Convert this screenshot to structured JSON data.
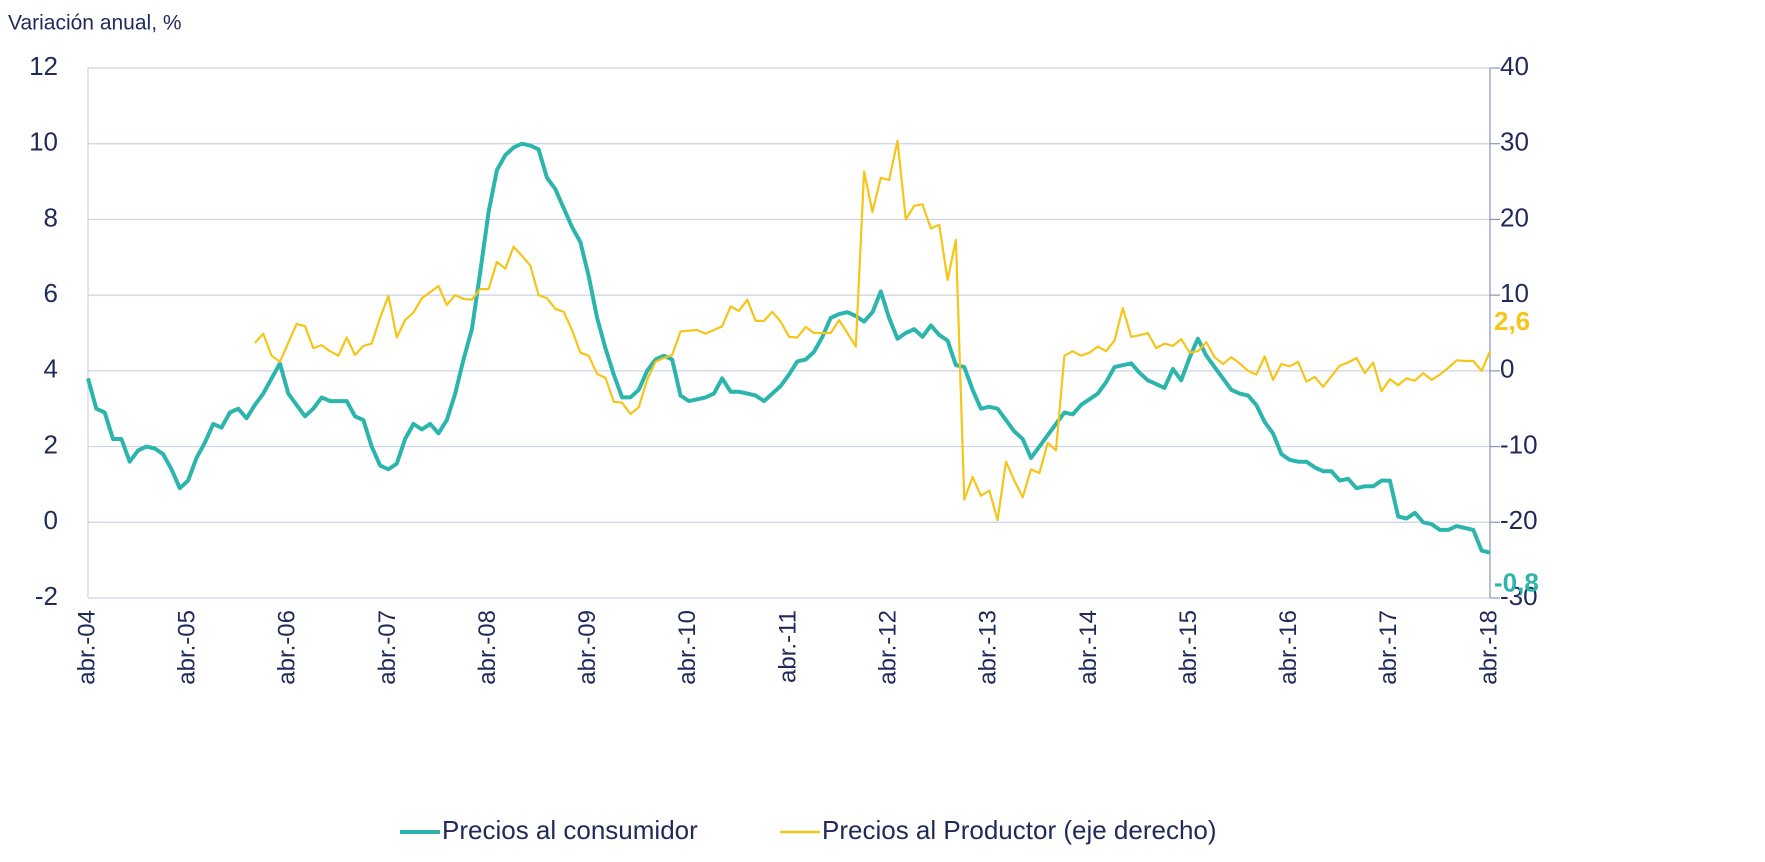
{
  "chart_data": {
    "type": "line",
    "axis_label": "Variación anual, %",
    "categories": [
      "abr.-04",
      null,
      null,
      null,
      null,
      null,
      null,
      null,
      null,
      null,
      null,
      null,
      "abr.-05",
      null,
      null,
      null,
      null,
      null,
      null,
      null,
      null,
      null,
      null,
      null,
      "abr.-06",
      null,
      null,
      null,
      null,
      null,
      null,
      null,
      null,
      null,
      null,
      null,
      "abr.-07",
      null,
      null,
      null,
      null,
      null,
      null,
      null,
      null,
      null,
      null,
      null,
      "abr.-08",
      null,
      null,
      null,
      null,
      null,
      null,
      null,
      null,
      null,
      null,
      null,
      "abr.-09",
      null,
      null,
      null,
      null,
      null,
      null,
      null,
      null,
      null,
      null,
      null,
      "abr.-10",
      null,
      null,
      null,
      null,
      null,
      null,
      null,
      null,
      null,
      null,
      null,
      "abr.-11",
      null,
      null,
      null,
      null,
      null,
      null,
      null,
      null,
      null,
      null,
      null,
      "abr.-12",
      null,
      null,
      null,
      null,
      null,
      null,
      null,
      null,
      null,
      null,
      null,
      "abr.-13",
      null,
      null,
      null,
      null,
      null,
      null,
      null,
      null,
      null,
      null,
      null,
      "abr.-14",
      null,
      null,
      null,
      null,
      null,
      null,
      null,
      null,
      null,
      null,
      null,
      "abr.-15",
      null,
      null,
      null,
      null,
      null,
      null,
      null,
      null,
      null,
      null,
      null,
      "abr.-16",
      null,
      null,
      null,
      null,
      null,
      null,
      null,
      null,
      null,
      null,
      null,
      "abr.-17",
      null,
      null,
      null,
      null,
      null,
      null,
      null,
      null,
      null,
      null,
      null,
      "abr.-18"
    ],
    "series": [
      {
        "name": "Precios al consumidor",
        "color": "#2bb5ad",
        "end_label": "-0,8",
        "values": [
          3.8,
          3.0,
          2.9,
          2.2,
          2.2,
          1.6,
          1.9,
          2.0,
          1.95,
          1.8,
          1.4,
          0.9,
          1.1,
          1.7,
          2.1,
          2.6,
          2.5,
          2.9,
          3.0,
          2.75,
          3.1,
          3.4,
          3.8,
          4.2,
          3.4,
          3.1,
          2.8,
          3.0,
          3.3,
          3.2,
          3.2,
          3.2,
          2.8,
          2.7,
          2.0,
          1.5,
          1.4,
          1.55,
          2.2,
          2.6,
          2.45,
          2.6,
          2.35,
          2.7,
          3.4,
          4.3,
          5.1,
          6.6,
          8.2,
          9.3,
          9.7,
          9.9,
          10.0,
          9.95,
          9.85,
          9.1,
          8.8,
          8.3,
          7.8,
          7.4,
          6.5,
          5.4,
          4.6,
          3.9,
          3.3,
          3.3,
          3.5,
          4.0,
          4.3,
          4.4,
          4.3,
          3.35,
          3.2,
          3.25,
          3.3,
          3.4,
          3.8,
          3.45,
          3.45,
          3.4,
          3.35,
          3.2,
          3.4,
          3.6,
          3.9,
          4.25,
          4.3,
          4.5,
          4.9,
          5.4,
          5.5,
          5.55,
          5.45,
          5.3,
          5.55,
          6.1,
          5.4,
          4.85,
          5.0,
          5.1,
          4.9,
          5.2,
          4.95,
          4.8,
          4.15,
          4.1,
          3.5,
          3.0,
          3.05,
          3.0,
          2.7,
          2.4,
          2.2,
          1.7,
          2.0,
          2.3,
          2.6,
          2.9,
          2.85,
          3.1,
          3.25,
          3.4,
          3.7,
          4.1,
          4.15,
          4.2,
          3.95,
          3.75,
          3.65,
          3.55,
          4.05,
          3.75,
          4.35,
          4.85,
          4.4,
          4.1,
          3.8,
          3.5,
          3.4,
          3.35,
          3.1,
          2.65,
          2.35,
          1.8,
          1.65,
          1.6,
          1.6,
          1.45,
          1.35,
          1.35,
          1.1,
          1.15,
          0.9,
          0.95,
          0.95,
          1.1,
          1.1,
          0.15,
          0.1,
          0.25,
          0.0,
          -0.05,
          -0.2,
          -0.2,
          -0.1,
          -0.15,
          -0.2,
          -0.75,
          -0.8
        ]
      },
      {
        "name": "Precios al Productor (eje derecho)",
        "color": "#f5c518",
        "axis": "y2",
        "end_label": "2,6",
        "values": [
          null,
          null,
          null,
          null,
          null,
          null,
          null,
          null,
          null,
          null,
          null,
          null,
          null,
          null,
          null,
          null,
          null,
          null,
          null,
          null,
          3.7,
          4.9,
          2.0,
          1.2,
          3.7,
          6.2,
          5.9,
          3.0,
          3.4,
          2.6,
          2.0,
          4.4,
          2.1,
          3.3,
          3.6,
          7.0,
          9.9,
          4.4,
          6.7,
          7.7,
          9.6,
          10.4,
          11.2,
          8.7,
          10.0,
          9.5,
          9.4,
          10.8,
          10.8,
          14.4,
          13.5,
          16.4,
          15.2,
          13.9,
          10.0,
          9.6,
          8.2,
          7.8,
          5.4,
          2.4,
          2.0,
          -0.4,
          -0.9,
          -4.1,
          -4.2,
          -5.7,
          -4.8,
          -1.2,
          1.2,
          1.7,
          2.1,
          5.2,
          5.3,
          5.4,
          4.9,
          5.4,
          5.9,
          8.5,
          7.9,
          9.4,
          6.6,
          6.6,
          7.8,
          6.5,
          4.5,
          4.4,
          5.8,
          5.0,
          5.0,
          5.0,
          6.7,
          5.0,
          3.2,
          26.3,
          21.0,
          25.5,
          25.2,
          30.4,
          20.0,
          21.8,
          22.0,
          18.8,
          19.3,
          12.0,
          17.3,
          -17.0,
          -14.0,
          -16.5,
          -15.8,
          -19.7,
          -12.0,
          -14.5,
          -16.7,
          -13.0,
          -13.5,
          -9.5,
          -10.5,
          2.0,
          2.6,
          2.0,
          2.4,
          3.2,
          2.6,
          4.0,
          8.3,
          4.5,
          4.7,
          5.0,
          3.0,
          3.6,
          3.3,
          4.2,
          2.4,
          2.6,
          3.8,
          1.8,
          0.9,
          1.8,
          1.0,
          0,
          -0.5,
          1.9,
          -1.2,
          0.9,
          0.6,
          1.2,
          -1.4,
          -0.8,
          -2.1,
          -0.7,
          0.7,
          1.1,
          1.7,
          -0.3,
          1.1,
          -2.7,
          -1.1,
          -1.9,
          -1.0,
          -1.3,
          -0.3,
          -1.2,
          -0.5,
          0.4,
          1.4,
          1.3,
          1.3,
          0.0,
          2.6
        ]
      }
    ],
    "ylim": [
      -2,
      12
    ],
    "yticks": [
      -2,
      0,
      2,
      4,
      6,
      8,
      10,
      12
    ],
    "y2lim": [
      -30,
      40
    ],
    "y2ticks": [
      -30,
      -20,
      -10,
      0,
      10,
      20,
      30,
      40
    ],
    "grid": true
  }
}
